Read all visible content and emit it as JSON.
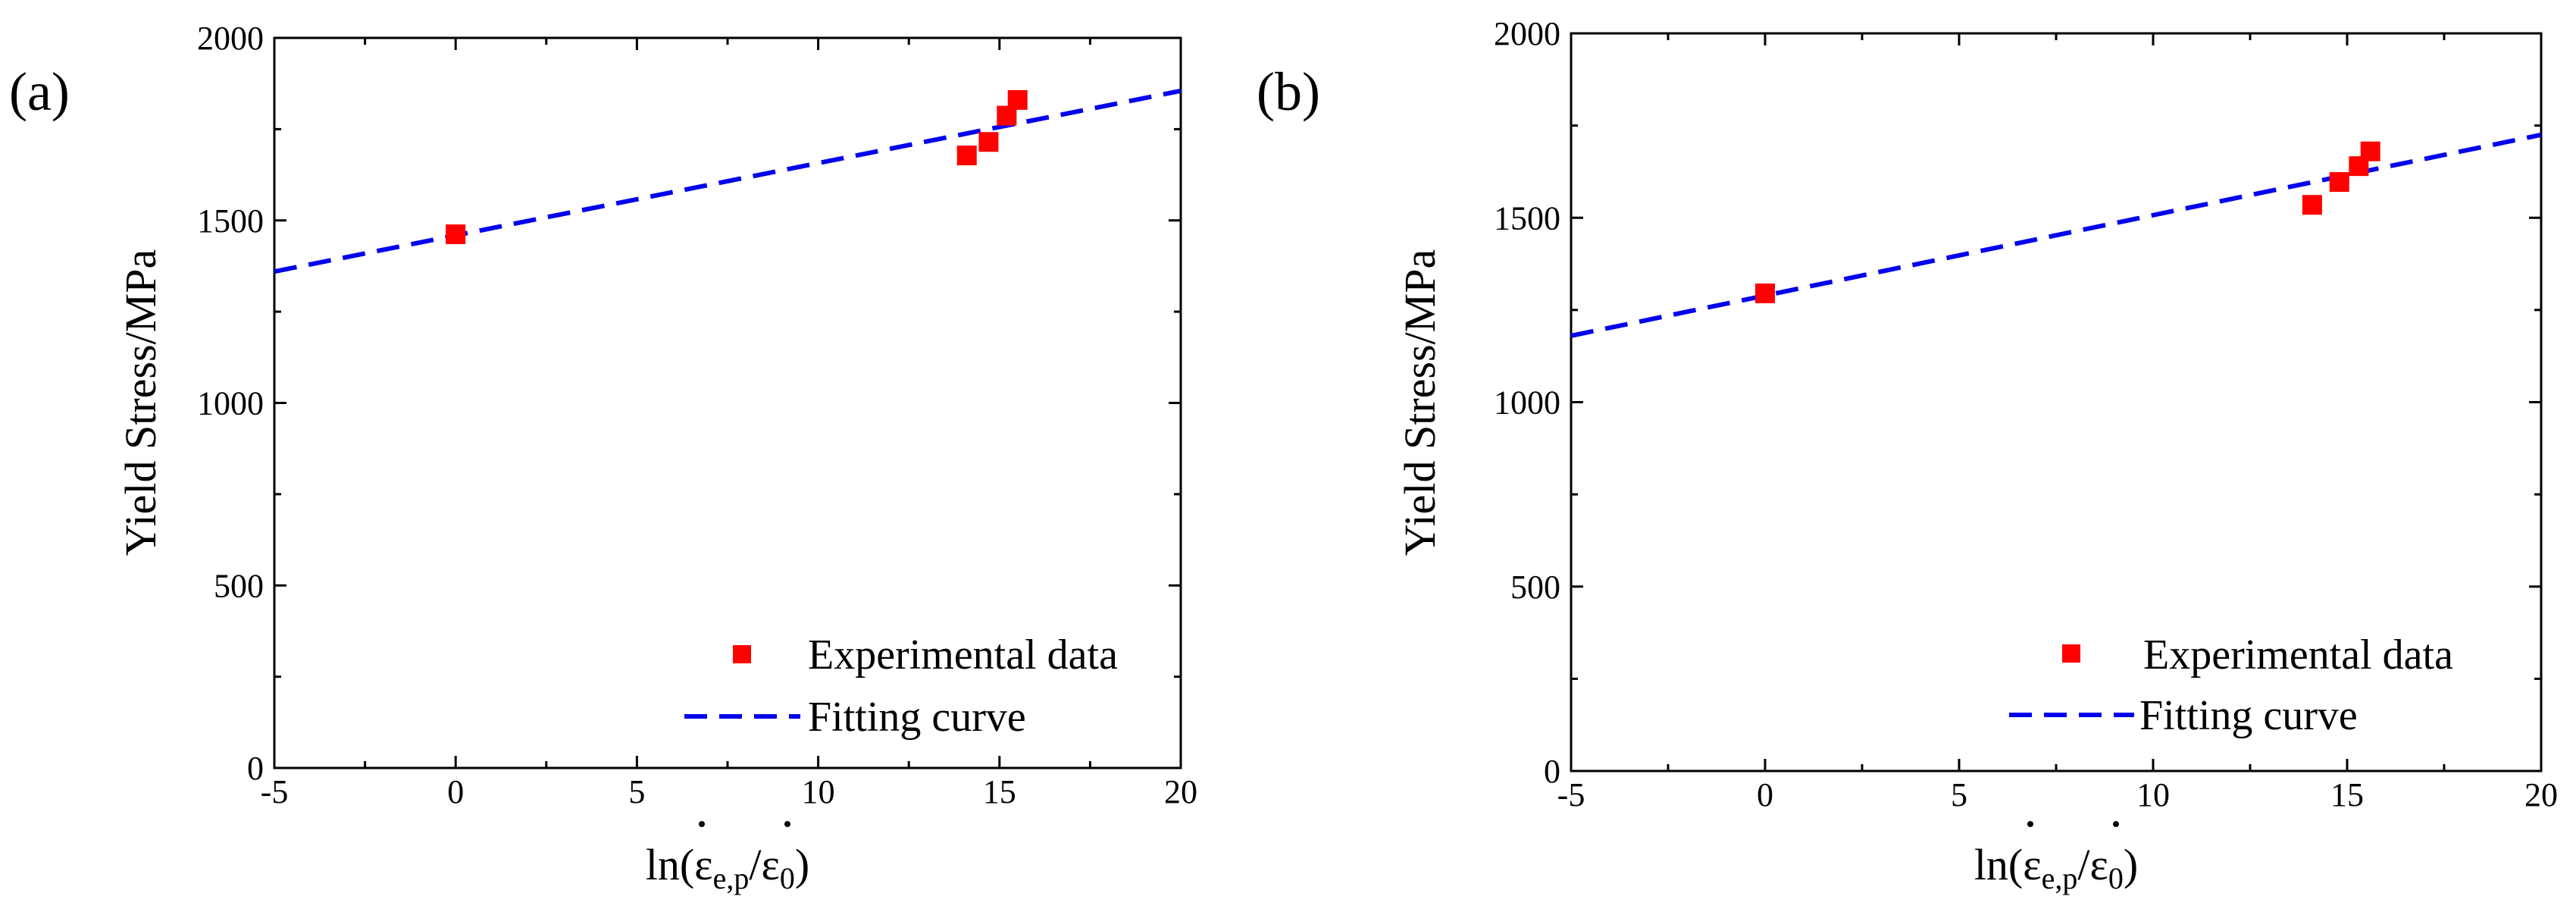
{
  "figure": {
    "colors": {
      "data": "#ff0000",
      "fit": "#0000ee",
      "axis": "#000000"
    }
  },
  "chart_data": [
    {
      "type": "scatter",
      "panel_label": "(a)",
      "title": "",
      "xlabel": "ln(ε̇e,p/ε̇0)",
      "ylabel": "Yield Stress/MPa",
      "xlim": [
        -5,
        20
      ],
      "ylim": [
        0,
        2000
      ],
      "xticks": [
        -5,
        0,
        5,
        10,
        15,
        20
      ],
      "yticks": [
        0,
        500,
        1000,
        1500,
        2000
      ],
      "legend_position": "lower-right",
      "series": [
        {
          "name": "Experimental data",
          "kind": "points",
          "color": "#ff0000",
          "x": [
            0,
            14.1,
            14.7,
            15.2,
            15.5
          ],
          "y": [
            1462,
            1678,
            1715,
            1787,
            1830
          ]
        },
        {
          "name": "Fitting curve",
          "kind": "dashed-line",
          "color": "#0000ee",
          "x": [
            -5,
            20
          ],
          "y": [
            1360,
            1855
          ]
        }
      ]
    },
    {
      "type": "scatter",
      "panel_label": "(b)",
      "title": "",
      "xlabel": "ln(ε̇e,p/ε̇0)",
      "ylabel": "Yield Stress/MPa",
      "xlim": [
        -5,
        20
      ],
      "ylim": [
        0,
        2000
      ],
      "xticks": [
        -5,
        0,
        5,
        10,
        15,
        20
      ],
      "yticks": [
        0,
        500,
        1000,
        1500,
        2000
      ],
      "legend_position": "lower-right",
      "series": [
        {
          "name": "Experimental data",
          "kind": "points",
          "color": "#ff0000",
          "x": [
            0,
            14.1,
            14.8,
            15.3,
            15.6
          ],
          "y": [
            1295,
            1535,
            1597,
            1640,
            1680
          ]
        },
        {
          "name": "Fitting curve",
          "kind": "dashed-line",
          "color": "#0000ee",
          "x": [
            -5,
            20
          ],
          "y": [
            1180,
            1725
          ]
        }
      ]
    }
  ]
}
